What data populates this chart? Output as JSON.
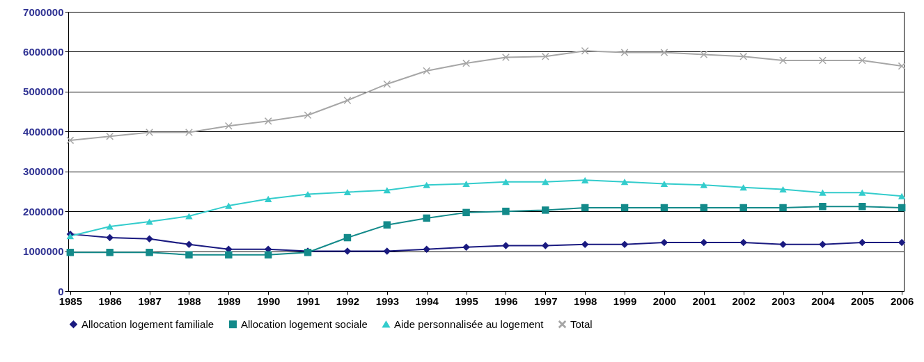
{
  "chart_data": {
    "type": "line",
    "categories": [
      "1985",
      "1986",
      "1987",
      "1988",
      "1989",
      "1990",
      "1991",
      "1992",
      "1993",
      "1994",
      "1995",
      "1996",
      "1997",
      "1998",
      "1999",
      "2000",
      "2001",
      "2002",
      "2003",
      "2004",
      "2005",
      "2006"
    ],
    "series": [
      {
        "name": "Allocation logement familiale",
        "color": "#1a1a80",
        "marker": "diamond",
        "values": [
          1430000,
          1340000,
          1310000,
          1170000,
          1050000,
          1050000,
          1000000,
          1000000,
          1000000,
          1050000,
          1100000,
          1140000,
          1140000,
          1170000,
          1170000,
          1220000,
          1220000,
          1220000,
          1170000,
          1170000,
          1220000,
          1220000
        ]
      },
      {
        "name": "Allocation logement sociale",
        "color": "#138a8a",
        "marker": "square",
        "values": [
          970000,
          970000,
          970000,
          910000,
          910000,
          910000,
          970000,
          1340000,
          1660000,
          1830000,
          1970000,
          2000000,
          2030000,
          2090000,
          2090000,
          2090000,
          2090000,
          2090000,
          2090000,
          2120000,
          2120000,
          2090000
        ]
      },
      {
        "name": "Aide personnalisée au logement",
        "color": "#33cccc",
        "marker": "triangle",
        "values": [
          1380000,
          1620000,
          1740000,
          1880000,
          2140000,
          2310000,
          2430000,
          2480000,
          2530000,
          2660000,
          2690000,
          2740000,
          2740000,
          2780000,
          2740000,
          2690000,
          2660000,
          2600000,
          2550000,
          2470000,
          2470000,
          2380000
        ]
      },
      {
        "name": "Total",
        "color": "#a6a6a6",
        "marker": "cross",
        "values": [
          3780000,
          3880000,
          3980000,
          3980000,
          4140000,
          4260000,
          4410000,
          4780000,
          5190000,
          5520000,
          5710000,
          5860000,
          5880000,
          6020000,
          5980000,
          5980000,
          5930000,
          5880000,
          5780000,
          5780000,
          5780000,
          5640000
        ]
      }
    ],
    "ylim": [
      0,
      7000000
    ],
    "yticks": [
      0,
      1000000,
      2000000,
      3000000,
      4000000,
      5000000,
      6000000,
      7000000
    ],
    "grid": "y",
    "legend": "bottom",
    "line_style": "solid"
  }
}
